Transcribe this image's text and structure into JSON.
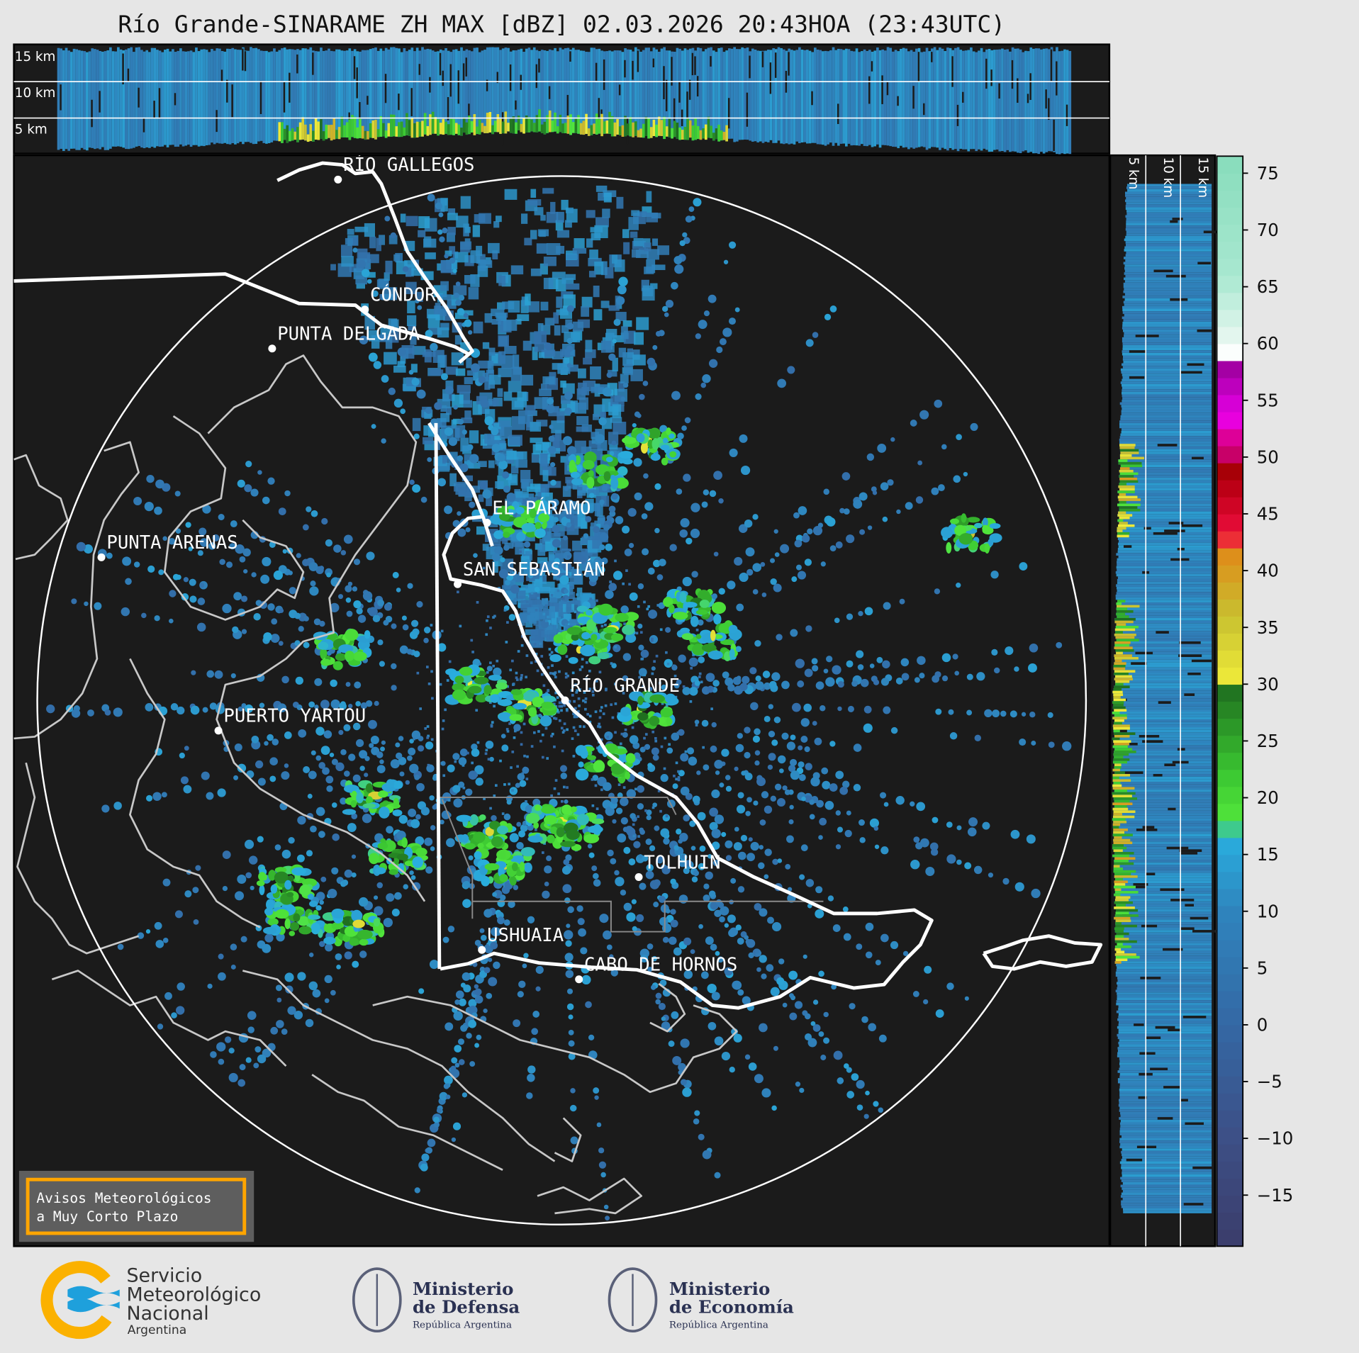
{
  "title": "Río Grande-SINARAME ZH MAX [dBZ] 02.03.2026 20:43HOA (23:43UTC)",
  "top_panel": {
    "height_labels": [
      "15 km",
      "10 km",
      "5 km"
    ]
  },
  "side_panel": {
    "height_labels": [
      "5 km",
      "10 km",
      "15 km"
    ]
  },
  "colorbar": {
    "unit": "dBZ",
    "min": -19.5,
    "max": 76.5,
    "band": 1.5,
    "ticks": [
      75,
      70,
      65,
      60,
      55,
      50,
      45,
      40,
      35,
      30,
      25,
      20,
      15,
      10,
      5,
      0,
      -5,
      -10,
      -15
    ],
    "tick_labels": [
      "75",
      "70",
      "65",
      "60",
      "55",
      "50",
      "45",
      "40",
      "35",
      "30",
      "25",
      "20",
      "15",
      "10",
      "5",
      "0",
      "−5",
      "−10",
      "−15"
    ],
    "stops": [
      [
        -19.5,
        "#3b3d6b"
      ],
      [
        -10,
        "#3d4f86"
      ],
      [
        0,
        "#3468a4"
      ],
      [
        10,
        "#2f84bd"
      ],
      [
        16.5,
        "#29aede"
      ],
      [
        18,
        "#52e63c"
      ],
      [
        22,
        "#3cc832"
      ],
      [
        29.9,
        "#1f6e1f"
      ],
      [
        30,
        "#f0ec3a"
      ],
      [
        36,
        "#c8c030"
      ],
      [
        42,
        "#e08818"
      ],
      [
        43,
        "#f01040"
      ],
      [
        47,
        "#c00018"
      ],
      [
        49.5,
        "#9c0000"
      ],
      [
        50,
        "#c40060"
      ],
      [
        52,
        "#e000a0"
      ],
      [
        53.5,
        "#ea00ea"
      ],
      [
        58.5,
        "#980098"
      ],
      [
        59,
        "#ffffff"
      ],
      [
        61,
        "#dff5ec"
      ],
      [
        66,
        "#a8e8d0"
      ],
      [
        76.5,
        "#88dcbc"
      ]
    ]
  },
  "map": {
    "radar_site": "RÍO GRANDE",
    "cities": [
      {
        "name": "RÍO GALLEGOS"
      },
      {
        "name": "CÓNDOR"
      },
      {
        "name": "PUNTA DELGADA"
      },
      {
        "name": "EL PÁRAMO"
      },
      {
        "name": "PUNTA ARENAS"
      },
      {
        "name": "SAN SEBASTIÁN"
      },
      {
        "name": "RÍO GRANDE"
      },
      {
        "name": "PUERTO YARTOU"
      },
      {
        "name": "TOLHUIN"
      },
      {
        "name": "USHUAIA"
      },
      {
        "name": "CABO DE HORNOS"
      }
    ]
  },
  "warning_box": {
    "line1": "Avisos Meteorológicos",
    "line2": "a Muy Corto Plazo",
    "border_color": "#ffa500"
  },
  "logos": {
    "smn": {
      "line1": "Servicio",
      "line2": "Meteorológico",
      "line3": "Nacional",
      "line4": "Argentina"
    },
    "defensa": {
      "line1": "Ministerio",
      "line2": "de Defensa",
      "line3": "República Argentina"
    },
    "economia": {
      "line1": "Ministerio",
      "line2": "de Economía",
      "line3": "República Argentina"
    }
  }
}
